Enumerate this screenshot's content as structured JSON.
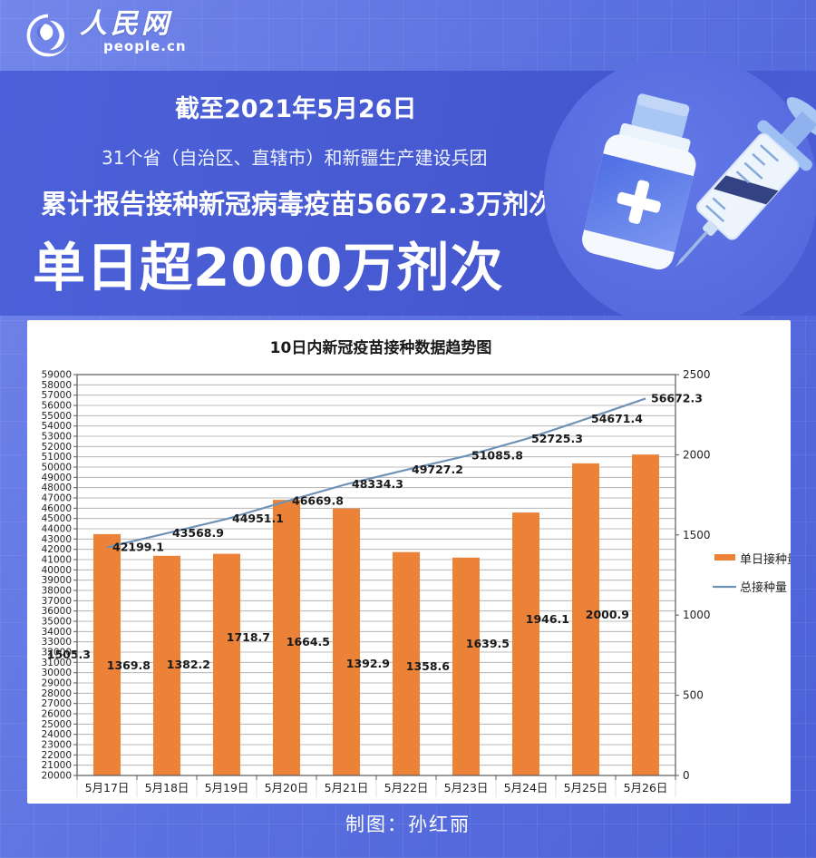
{
  "header": {
    "logo_title": "人民网",
    "logo_subtitle": "people.cn"
  },
  "banner": {
    "date_line": "截至2021年5月26日",
    "scope_line": "31个省（自治区、直辖市）和新疆生产建设兵团",
    "cumulative_line": "累计报告接种新冠病毒疫苗56672.3万剂次",
    "headline": "单日超2000万剂次"
  },
  "footer": {
    "credit": "制图：孙红丽"
  },
  "icons": {
    "logo_swirl": "people-cn-swirl-globe",
    "illustration": "vaccine-vial-and-syringe"
  },
  "colors": {
    "bar": "#EC8138",
    "line": "#6E93B7",
    "grid": "#A8A8A8",
    "axis_border": "#595959",
    "label": "#1A1A1A",
    "brand_blue": "#4C61D8"
  },
  "chart_data": {
    "type": "bar",
    "subtype": "bar-line-combo",
    "title": "10日内新冠疫苗接种数据趋势图",
    "categories": [
      "5月17日",
      "5月18日",
      "5月19日",
      "5月20日",
      "5月21日",
      "5月22日",
      "5月23日",
      "5月24日",
      "5月25日",
      "5月26日"
    ],
    "series": [
      {
        "name": "单日接种量",
        "type": "bar",
        "axis": "right",
        "values": [
          1505.3,
          1369.8,
          1382.2,
          1718.7,
          1664.5,
          1392.9,
          1358.6,
          1639.5,
          1946.1,
          2000.9
        ]
      },
      {
        "name": "总接种量",
        "type": "line",
        "axis": "left",
        "values": [
          42199.1,
          43568.9,
          44951.1,
          46669.8,
          48334.3,
          49727.2,
          51085.8,
          52725.3,
          54671.4,
          56672.3
        ]
      }
    ],
    "left_axis": {
      "min": 20000,
      "max": 59000,
      "step": 1000,
      "ticks": [
        20000,
        21000,
        22000,
        23000,
        24000,
        25000,
        26000,
        27000,
        28000,
        29000,
        30000,
        31000,
        32000,
        33000,
        34000,
        35000,
        36000,
        37000,
        38000,
        39000,
        40000,
        41000,
        42000,
        43000,
        44000,
        45000,
        46000,
        47000,
        48000,
        49000,
        50000,
        51000,
        52000,
        53000,
        54000,
        55000,
        56000,
        57000,
        58000,
        59000
      ]
    },
    "right_axis": {
      "min": 0,
      "max": 2500,
      "step": 500,
      "ticks": [
        0,
        500,
        1000,
        1500,
        2000,
        2500
      ]
    },
    "grid": true,
    "legend_position": "right"
  }
}
